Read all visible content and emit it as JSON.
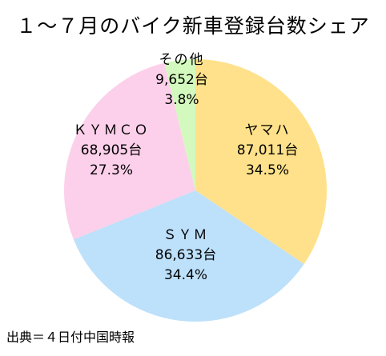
{
  "chart_data": {
    "type": "pie",
    "title": "１～７月のバイク新車登録台数シェア",
    "start_angle": "12 o'clock",
    "direction": "clockwise",
    "slices": [
      {
        "name": "ヤマハ",
        "units_label": "87,011台",
        "percent_label": "34.5%",
        "value": 87011,
        "percent": 34.5,
        "color": "#fee18a"
      },
      {
        "name": "ＳＹＭ",
        "units_label": "86,633台",
        "percent_label": "34.4%",
        "value": 86633,
        "percent": 34.4,
        "color": "#bde0fb"
      },
      {
        "name": "ＫＹＭＣＯ",
        "units_label": "68,905台",
        "percent_label": "27.3%",
        "value": 68905,
        "percent": 27.3,
        "color": "#fcd0ea"
      },
      {
        "name": "その他",
        "units_label": "9,652台",
        "percent_label": "3.8%",
        "value": 9652,
        "percent": 3.8,
        "color": "#d3f9be"
      }
    ]
  },
  "source": "出典＝４日付中国時報"
}
